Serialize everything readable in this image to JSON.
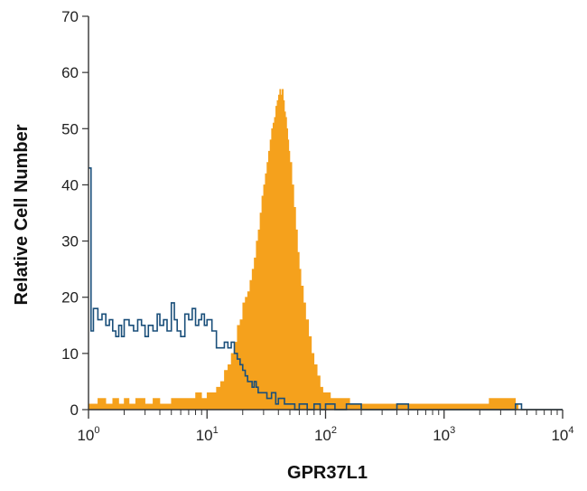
{
  "chart_data": {
    "type": "histogram",
    "xlabel": "GPR37L1",
    "ylabel": "Relative Cell Number",
    "x_scale": "log",
    "xlim": [
      1,
      10000
    ],
    "ylim": [
      0,
      70
    ],
    "yticks": [
      0,
      10,
      20,
      30,
      40,
      50,
      60,
      70
    ],
    "xticks": [
      {
        "base": "10",
        "exp": "0",
        "value": 1
      },
      {
        "base": "10",
        "exp": "1",
        "value": 10
      },
      {
        "base": "10",
        "exp": "2",
        "value": 100
      },
      {
        "base": "10",
        "exp": "3",
        "value": 1000
      },
      {
        "base": "10",
        "exp": "4",
        "value": 10000
      }
    ],
    "series": [
      {
        "style": "filled",
        "color": "#f5a11c",
        "points": [
          [
            1.0,
            1
          ],
          [
            1.1,
            1
          ],
          [
            1.2,
            2
          ],
          [
            1.4,
            1
          ],
          [
            1.6,
            2
          ],
          [
            1.8,
            1
          ],
          [
            2.0,
            2
          ],
          [
            2.2,
            1
          ],
          [
            2.5,
            2
          ],
          [
            3.0,
            1
          ],
          [
            3.5,
            2
          ],
          [
            4.0,
            1
          ],
          [
            5.0,
            2
          ],
          [
            6.0,
            2
          ],
          [
            7.0,
            2
          ],
          [
            8.0,
            3
          ],
          [
            9.0,
            2
          ],
          [
            10.0,
            3
          ],
          [
            11.0,
            3
          ],
          [
            12.0,
            4
          ],
          [
            13.0,
            5
          ],
          [
            14.0,
            7
          ],
          [
            15.0,
            8
          ],
          [
            16.0,
            10
          ],
          [
            17.0,
            12
          ],
          [
            18.0,
            15
          ],
          [
            19.0,
            16
          ],
          [
            20.0,
            19
          ],
          [
            21.0,
            20
          ],
          [
            22.0,
            21
          ],
          [
            23.0,
            23
          ],
          [
            24.0,
            25
          ],
          [
            25.0,
            27
          ],
          [
            26.0,
            30
          ],
          [
            27.0,
            32
          ],
          [
            28.0,
            35
          ],
          [
            29.0,
            38
          ],
          [
            30.0,
            40
          ],
          [
            31.0,
            42
          ],
          [
            32.0,
            44
          ],
          [
            33.0,
            46
          ],
          [
            34.0,
            48
          ],
          [
            35.0,
            50
          ],
          [
            36.0,
            51
          ],
          [
            37.0,
            52
          ],
          [
            38.0,
            54
          ],
          [
            39.0,
            55
          ],
          [
            40.0,
            56
          ],
          [
            41.0,
            57
          ],
          [
            42.0,
            56
          ],
          [
            43.0,
            57
          ],
          [
            44.0,
            55
          ],
          [
            45.0,
            53
          ],
          [
            46.0,
            52
          ],
          [
            47.0,
            50
          ],
          [
            48.0,
            48
          ],
          [
            49.0,
            46
          ],
          [
            50.0,
            44
          ],
          [
            52.0,
            40
          ],
          [
            54.0,
            36
          ],
          [
            56.0,
            32
          ],
          [
            58.0,
            28
          ],
          [
            60.0,
            25
          ],
          [
            62.0,
            22
          ],
          [
            65.0,
            19
          ],
          [
            68.0,
            16
          ],
          [
            72.0,
            13
          ],
          [
            76.0,
            10
          ],
          [
            80.0,
            8
          ],
          [
            85.0,
            6
          ],
          [
            90.0,
            4
          ],
          [
            95.0,
            3
          ],
          [
            100.0,
            3
          ],
          [
            110.0,
            2
          ],
          [
            120.0,
            2
          ],
          [
            140.0,
            2
          ],
          [
            160.0,
            1
          ],
          [
            180.0,
            1
          ],
          [
            200.0,
            1
          ],
          [
            300.0,
            1
          ],
          [
            500.0,
            1
          ],
          [
            700.0,
            1
          ],
          [
            1000.0,
            1
          ],
          [
            1500.0,
            1
          ],
          [
            2400.0,
            2
          ],
          [
            4000.0,
            1
          ]
        ]
      },
      {
        "style": "outline",
        "color": "#1a4f7a",
        "points": [
          [
            1.0,
            43
          ],
          [
            1.05,
            14
          ],
          [
            1.1,
            18
          ],
          [
            1.2,
            16
          ],
          [
            1.3,
            17
          ],
          [
            1.4,
            15
          ],
          [
            1.5,
            16
          ],
          [
            1.6,
            14
          ],
          [
            1.7,
            13
          ],
          [
            1.8,
            15
          ],
          [
            1.9,
            13
          ],
          [
            2.0,
            16
          ],
          [
            2.2,
            15
          ],
          [
            2.4,
            14
          ],
          [
            2.6,
            16
          ],
          [
            2.8,
            15
          ],
          [
            3.0,
            13
          ],
          [
            3.2,
            15
          ],
          [
            3.5,
            14
          ],
          [
            3.8,
            17
          ],
          [
            4.0,
            15
          ],
          [
            4.3,
            16
          ],
          [
            4.6,
            14
          ],
          [
            5.0,
            19
          ],
          [
            5.3,
            16
          ],
          [
            5.6,
            14
          ],
          [
            6.0,
            13
          ],
          [
            6.5,
            17
          ],
          [
            7.0,
            16
          ],
          [
            7.5,
            18
          ],
          [
            8.0,
            15
          ],
          [
            8.5,
            16
          ],
          [
            9.0,
            17
          ],
          [
            9.5,
            15
          ],
          [
            10.0,
            16
          ],
          [
            11.0,
            14
          ],
          [
            12.0,
            11
          ],
          [
            13.0,
            11
          ],
          [
            14.0,
            12
          ],
          [
            15.0,
            11
          ],
          [
            16.0,
            12
          ],
          [
            17.0,
            10
          ],
          [
            18.0,
            9
          ],
          [
            19.0,
            8
          ],
          [
            20.0,
            7
          ],
          [
            21.0,
            6
          ],
          [
            22.0,
            5
          ],
          [
            23.0,
            5
          ],
          [
            24.0,
            4
          ],
          [
            25.0,
            5
          ],
          [
            26.0,
            4
          ],
          [
            27.0,
            3
          ],
          [
            28.0,
            3
          ],
          [
            30.0,
            3
          ],
          [
            32.0,
            2
          ],
          [
            35.0,
            3
          ],
          [
            38.0,
            1
          ],
          [
            40.0,
            2
          ],
          [
            45.0,
            1
          ],
          [
            50.0,
            1
          ],
          [
            55.0,
            0
          ],
          [
            60.0,
            1
          ],
          [
            70.0,
            0
          ],
          [
            80.0,
            1
          ],
          [
            90.0,
            0
          ],
          [
            100.0,
            1
          ],
          [
            120.0,
            0
          ],
          [
            150.0,
            1
          ],
          [
            200.0,
            0
          ],
          [
            300.0,
            0
          ],
          [
            400.0,
            1
          ],
          [
            500.0,
            0
          ],
          [
            1000.0,
            0
          ],
          [
            4000.0,
            1
          ],
          [
            4500.0,
            0
          ],
          [
            10000.0,
            0
          ]
        ]
      }
    ]
  }
}
